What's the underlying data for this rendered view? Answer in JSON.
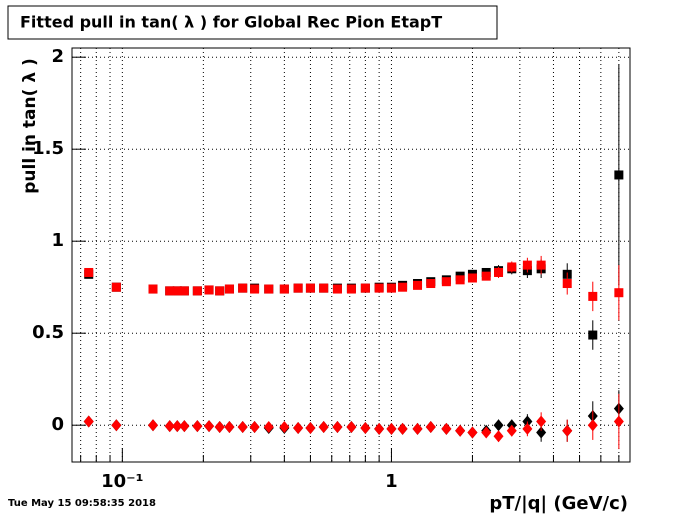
{
  "chart_data": {
    "type": "scatter",
    "title": "Fitted pull in tan( λ ) for Global Rec Pion EtapT",
    "y_label": "pull in tan( λ )",
    "x_label": "pT/|q| (GeV/c)",
    "timestamp": "Tue May 15 09:58:35 2018",
    "x_scale": "log",
    "grid": true,
    "xlim": [
      0.065,
      7.7
    ],
    "ylim": [
      -0.2,
      2.05
    ],
    "xticks": [
      {
        "value": 0.1,
        "label": "10⁻¹"
      },
      1
    ],
    "xminorticks": [
      0.07,
      0.08,
      0.09,
      0.2,
      0.3,
      0.4,
      0.5,
      0.6,
      0.7,
      0.8,
      0.9,
      2,
      3,
      4,
      5,
      6,
      7
    ],
    "yticks": [
      0,
      0.5,
      1,
      1.5,
      2
    ],
    "x": [
      0.075,
      0.095,
      0.13,
      0.15,
      0.16,
      0.17,
      0.19,
      0.21,
      0.23,
      0.25,
      0.28,
      0.31,
      0.35,
      0.4,
      0.45,
      0.5,
      0.56,
      0.63,
      0.71,
      0.8,
      0.9,
      1.0,
      1.1,
      1.25,
      1.4,
      1.6,
      1.8,
      2.0,
      2.25,
      2.5,
      2.8,
      3.2,
      3.6,
      4.5,
      5.6,
      7.0
    ],
    "series": [
      {
        "color": "#000000",
        "marker": "square",
        "values": [
          0.82,
          0.75,
          0.74,
          0.73,
          0.73,
          0.73,
          0.73,
          0.735,
          0.73,
          0.74,
          0.745,
          0.745,
          0.74,
          0.74,
          0.745,
          0.745,
          0.745,
          0.745,
          0.745,
          0.745,
          0.75,
          0.75,
          0.76,
          0.77,
          0.78,
          0.79,
          0.81,
          0.82,
          0.83,
          0.84,
          0.85,
          0.84,
          0.85,
          0.82,
          0.49,
          1.36
        ],
        "errors": [
          0.01,
          0.01,
          0.01,
          0.01,
          0.01,
          0.01,
          0.01,
          0.01,
          0.01,
          0.01,
          0.01,
          0.01,
          0.01,
          0.01,
          0.01,
          0.01,
          0.01,
          0.01,
          0.01,
          0.01,
          0.01,
          0.01,
          0.01,
          0.01,
          0.015,
          0.015,
          0.02,
          0.02,
          0.02,
          0.03,
          0.03,
          0.04,
          0.05,
          0.06,
          0.08,
          0.6
        ]
      },
      {
        "color": "#ff0000",
        "marker": "square",
        "values": [
          0.83,
          0.75,
          0.74,
          0.73,
          0.73,
          0.73,
          0.73,
          0.735,
          0.73,
          0.74,
          0.745,
          0.74,
          0.74,
          0.74,
          0.745,
          0.745,
          0.745,
          0.74,
          0.74,
          0.745,
          0.745,
          0.745,
          0.75,
          0.76,
          0.77,
          0.78,
          0.79,
          0.8,
          0.81,
          0.83,
          0.86,
          0.87,
          0.87,
          0.77,
          0.7,
          0.72
        ],
        "errors": [
          0.01,
          0.01,
          0.01,
          0.01,
          0.01,
          0.01,
          0.01,
          0.01,
          0.01,
          0.01,
          0.01,
          0.01,
          0.01,
          0.01,
          0.01,
          0.01,
          0.01,
          0.01,
          0.01,
          0.01,
          0.01,
          0.01,
          0.01,
          0.01,
          0.015,
          0.015,
          0.02,
          0.02,
          0.02,
          0.03,
          0.03,
          0.04,
          0.05,
          0.06,
          0.08,
          0.15
        ]
      },
      {
        "color": "#000000",
        "marker": "diamond",
        "values": [
          0.02,
          0,
          0,
          -0.005,
          -0.005,
          -0.005,
          -0.005,
          -0.005,
          -0.01,
          -0.01,
          -0.01,
          -0.01,
          -0.015,
          -0.015,
          -0.015,
          -0.015,
          -0.01,
          -0.01,
          -0.01,
          -0.015,
          -0.02,
          -0.02,
          -0.02,
          -0.02,
          -0.01,
          -0.02,
          -0.03,
          -0.04,
          -0.03,
          0,
          0,
          0.02,
          -0.04,
          -0.03,
          0.05,
          0.09
        ],
        "errors": [
          0.01,
          0.01,
          0.01,
          0.01,
          0.01,
          0.01,
          0.01,
          0.01,
          0.01,
          0.01,
          0.01,
          0.01,
          0.01,
          0.01,
          0.01,
          0.01,
          0.01,
          0.01,
          0.01,
          0.01,
          0.01,
          0.01,
          0.01,
          0.01,
          0.015,
          0.015,
          0.02,
          0.02,
          0.02,
          0.03,
          0.03,
          0.04,
          0.05,
          0.06,
          0.08,
          0.1
        ]
      },
      {
        "color": "#ff0000",
        "marker": "diamond",
        "values": [
          0.02,
          0,
          0,
          -0.005,
          -0.005,
          -0.005,
          -0.005,
          -0.005,
          -0.01,
          -0.01,
          -0.01,
          -0.01,
          -0.01,
          -0.01,
          -0.015,
          -0.015,
          -0.01,
          -0.01,
          -0.01,
          -0.015,
          -0.02,
          -0.02,
          -0.02,
          -0.02,
          -0.01,
          -0.02,
          -0.03,
          -0.04,
          -0.04,
          -0.06,
          -0.03,
          -0.02,
          0.02,
          -0.03,
          0,
          0.02
        ],
        "errors": [
          0.01,
          0.01,
          0.01,
          0.01,
          0.01,
          0.01,
          0.01,
          0.01,
          0.01,
          0.01,
          0.01,
          0.01,
          0.01,
          0.01,
          0.01,
          0.01,
          0.01,
          0.01,
          0.01,
          0.01,
          0.01,
          0.01,
          0.01,
          0.01,
          0.015,
          0.015,
          0.02,
          0.02,
          0.02,
          0.03,
          0.03,
          0.04,
          0.05,
          0.06,
          0.08,
          0.15
        ]
      }
    ]
  }
}
